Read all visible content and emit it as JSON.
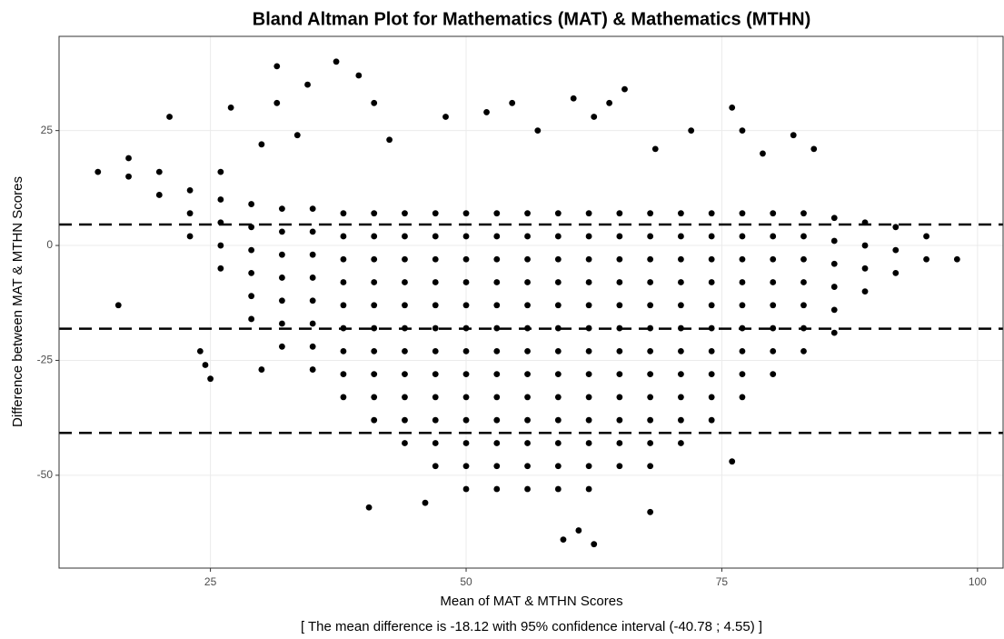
{
  "chart_data": {
    "type": "scatter",
    "title": "Bland Altman Plot for Mathematics (MAT) & Mathematics (MTHN)",
    "xlabel": "Mean of MAT & MTHN Scores",
    "ylabel": "Difference between MAT & MTHN Scores",
    "subtitle": "[ The mean difference is -18.12 with 95% confidence interval (-40.78 ; 4.55) ]",
    "color": "#000000",
    "grid": true,
    "xlim": [
      10.2,
      102.5
    ],
    "ylim": [
      -70.2,
      45.5
    ],
    "xticks": [
      25,
      50,
      75,
      100
    ],
    "yticks": [
      -50,
      -25,
      0,
      25
    ],
    "hlines": [
      4.55,
      -18.12,
      -40.78
    ],
    "x": [
      17,
      17,
      20,
      20,
      23,
      23,
      23,
      26,
      26,
      26,
      26,
      29,
      29,
      29,
      29,
      29,
      29,
      32,
      32,
      32,
      32,
      32,
      32,
      32,
      35,
      35,
      35,
      35,
      35,
      35,
      35,
      35,
      38,
      38,
      38,
      38,
      38,
      38,
      38,
      38,
      38,
      41,
      41,
      41,
      41,
      41,
      41,
      41,
      41,
      41,
      41,
      44,
      44,
      44,
      44,
      44,
      44,
      44,
      44,
      44,
      44,
      44,
      47,
      47,
      47,
      47,
      47,
      47,
      47,
      47,
      47,
      47,
      47,
      47,
      50,
      50,
      50,
      50,
      50,
      50,
      50,
      50,
      50,
      50,
      50,
      50,
      50,
      53,
      53,
      53,
      53,
      53,
      53,
      53,
      53,
      53,
      53,
      53,
      53,
      53,
      56,
      56,
      56,
      56,
      56,
      56,
      56,
      56,
      56,
      56,
      56,
      56,
      56,
      59,
      59,
      59,
      59,
      59,
      59,
      59,
      59,
      59,
      59,
      59,
      59,
      59,
      62,
      62,
      62,
      62,
      62,
      62,
      62,
      62,
      62,
      62,
      62,
      62,
      62,
      65,
      65,
      65,
      65,
      65,
      65,
      65,
      65,
      65,
      65,
      65,
      65,
      68,
      68,
      68,
      68,
      68,
      68,
      68,
      68,
      68,
      68,
      68,
      68,
      71,
      71,
      71,
      71,
      71,
      71,
      71,
      71,
      71,
      71,
      71,
      74,
      74,
      74,
      74,
      74,
      74,
      74,
      74,
      74,
      74,
      77,
      77,
      77,
      77,
      77,
      77,
      77,
      77,
      77,
      80,
      80,
      80,
      80,
      80,
      80,
      80,
      80,
      83,
      83,
      83,
      83,
      83,
      83,
      83,
      86,
      86,
      86,
      86,
      86,
      86,
      89,
      89,
      89,
      89,
      92,
      92,
      92,
      95,
      95,
      98,
      37.3,
      31.5,
      39.5,
      34.5,
      31.5,
      41,
      27,
      21,
      54.5,
      52,
      60.5,
      62.5,
      64,
      65.5,
      76,
      82,
      77,
      72,
      16,
      24,
      24.5,
      25,
      30,
      40.5,
      46,
      76,
      59.5,
      62.5,
      61,
      14,
      33.5,
      30,
      42.5,
      48,
      57,
      68,
      84,
      68.5,
      79,
      26
    ],
    "values": [
      19,
      15,
      16,
      11,
      12,
      7,
      2,
      10,
      5,
      0,
      -5,
      9,
      4,
      -1,
      -6,
      -11,
      -16,
      8,
      3,
      -2,
      -7,
      -12,
      -17,
      -22,
      8,
      3,
      -2,
      -7,
      -12,
      -17,
      -22,
      -27,
      7,
      2,
      -3,
      -8,
      -13,
      -18,
      -23,
      -28,
      -33,
      7,
      2,
      -3,
      -8,
      -13,
      -18,
      -23,
      -28,
      -33,
      -38,
      7,
      2,
      -3,
      -8,
      -13,
      -18,
      -23,
      -28,
      -33,
      -38,
      -43,
      7,
      2,
      -3,
      -8,
      -13,
      -18,
      -23,
      -28,
      -33,
      -38,
      -43,
      -48,
      7,
      2,
      -3,
      -8,
      -13,
      -18,
      -23,
      -28,
      -33,
      -38,
      -43,
      -48,
      -53,
      7,
      2,
      -3,
      -8,
      -13,
      -18,
      -23,
      -28,
      -33,
      -38,
      -43,
      -48,
      -53,
      7,
      2,
      -3,
      -8,
      -13,
      -18,
      -23,
      -28,
      -33,
      -38,
      -43,
      -48,
      -53,
      7,
      2,
      -3,
      -8,
      -13,
      -18,
      -23,
      -28,
      -33,
      -38,
      -43,
      -48,
      -53,
      7,
      2,
      -3,
      -8,
      -13,
      -18,
      -23,
      -28,
      -33,
      -38,
      -43,
      -48,
      -53,
      7,
      2,
      -3,
      -8,
      -13,
      -18,
      -23,
      -28,
      -33,
      -38,
      -43,
      -48,
      7,
      2,
      -3,
      -8,
      -13,
      -18,
      -23,
      -28,
      -33,
      -38,
      -43,
      -48,
      7,
      2,
      -3,
      -8,
      -13,
      -18,
      -23,
      -28,
      -33,
      -38,
      -43,
      7,
      2,
      -3,
      -8,
      -13,
      -18,
      -23,
      -28,
      -33,
      -38,
      7,
      2,
      -3,
      -8,
      -13,
      -18,
      -23,
      -28,
      -33,
      7,
      2,
      -3,
      -8,
      -13,
      -18,
      -23,
      -28,
      7,
      2,
      -3,
      -8,
      -13,
      -18,
      -23,
      6,
      1,
      -4,
      -9,
      -14,
      -19,
      5,
      0,
      -5,
      -10,
      4,
      -1,
      -6,
      2,
      -3,
      -3,
      40,
      39,
      37,
      35,
      31,
      31,
      30,
      28,
      31,
      29,
      32,
      28,
      31,
      34,
      30,
      24,
      25,
      25,
      -13,
      -23,
      -26,
      -29,
      -27,
      -57,
      -56,
      -47,
      -64,
      -65,
      -62,
      16,
      24,
      22,
      23,
      28,
      25,
      -58,
      21,
      21,
      20,
      16
    ]
  }
}
